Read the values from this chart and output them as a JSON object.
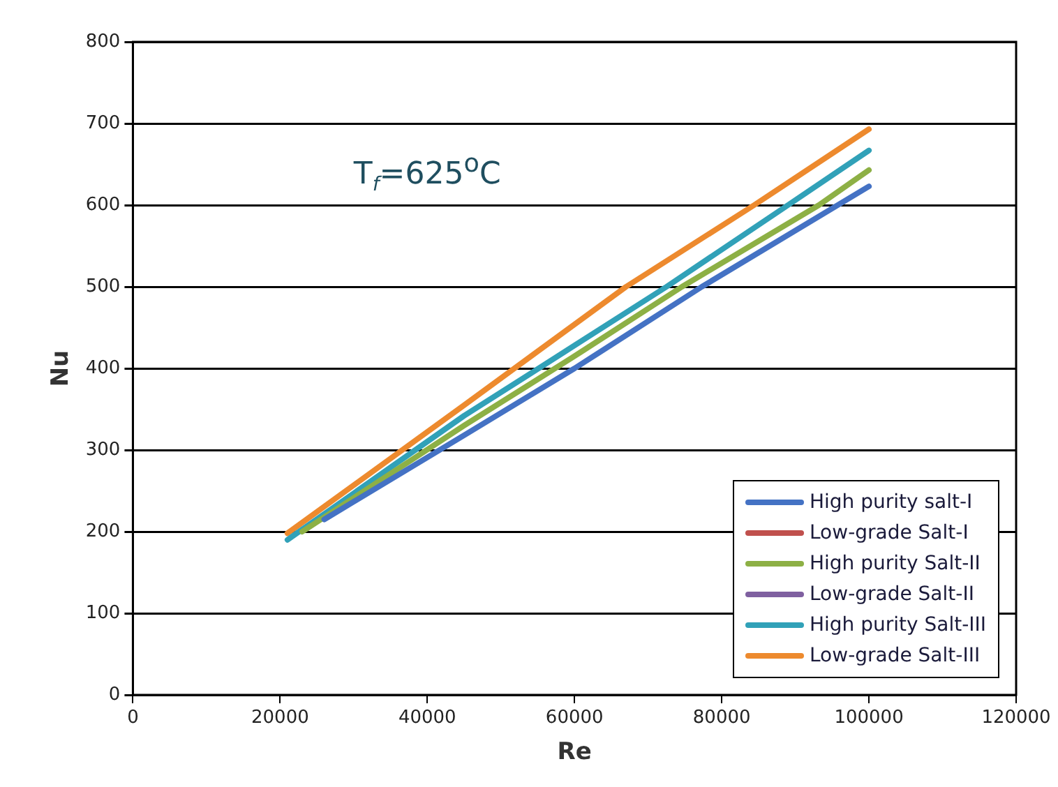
{
  "chart_data": {
    "type": "line",
    "xlabel": "Re",
    "ylabel": "Nu",
    "annotations": [
      "T$_{f}$=625$^{o}$C"
    ],
    "x": [
      21000,
      45000,
      67000,
      84400,
      100000
    ],
    "series": [
      {
        "name": "High purity salt-I",
        "color": "#4472c4",
        "x": [
          26000,
          45000,
          60000,
          77300,
          100000
        ],
        "values": [
          215,
          318,
          400,
          500,
          623
        ]
      },
      {
        "name": "Low-grade Salt-I",
        "color": "#c0504d",
        "values": [
          null,
          null,
          null,
          null,
          null
        ]
      },
      {
        "name": "High purity Salt-II",
        "color": "#8db045",
        "x": [
          23000,
          45000,
          60000,
          74600,
          93200,
          100000
        ],
        "values": [
          200,
          330,
          415,
          500,
          600,
          643
        ]
      },
      {
        "name": "Low-grade Salt-II",
        "color": "#7f60a0",
        "values": [
          null,
          null,
          null,
          null,
          null
        ]
      },
      {
        "name": "High purity Salt-III",
        "color": "#31a1b8",
        "x": [
          21000,
          45000,
          60000,
          72500,
          89000,
          100000
        ],
        "values": [
          190,
          342,
          428,
          500,
          600,
          667
        ]
      },
      {
        "name": "Low-grade Salt-III",
        "color": "#ed8a2e",
        "values": [
          198,
          355,
          500,
          600,
          693
        ]
      }
    ],
    "xlim": [
      0,
      120000
    ],
    "xticks": [
      0,
      20000,
      40000,
      60000,
      80000,
      100000,
      120000
    ],
    "ylim": [
      0,
      800
    ],
    "yticks": [
      0,
      100,
      200,
      300,
      400,
      500,
      600,
      700,
      800
    ],
    "grid": "y",
    "legend": "bottom right",
    "marker": "none",
    "line_style": "solid"
  }
}
